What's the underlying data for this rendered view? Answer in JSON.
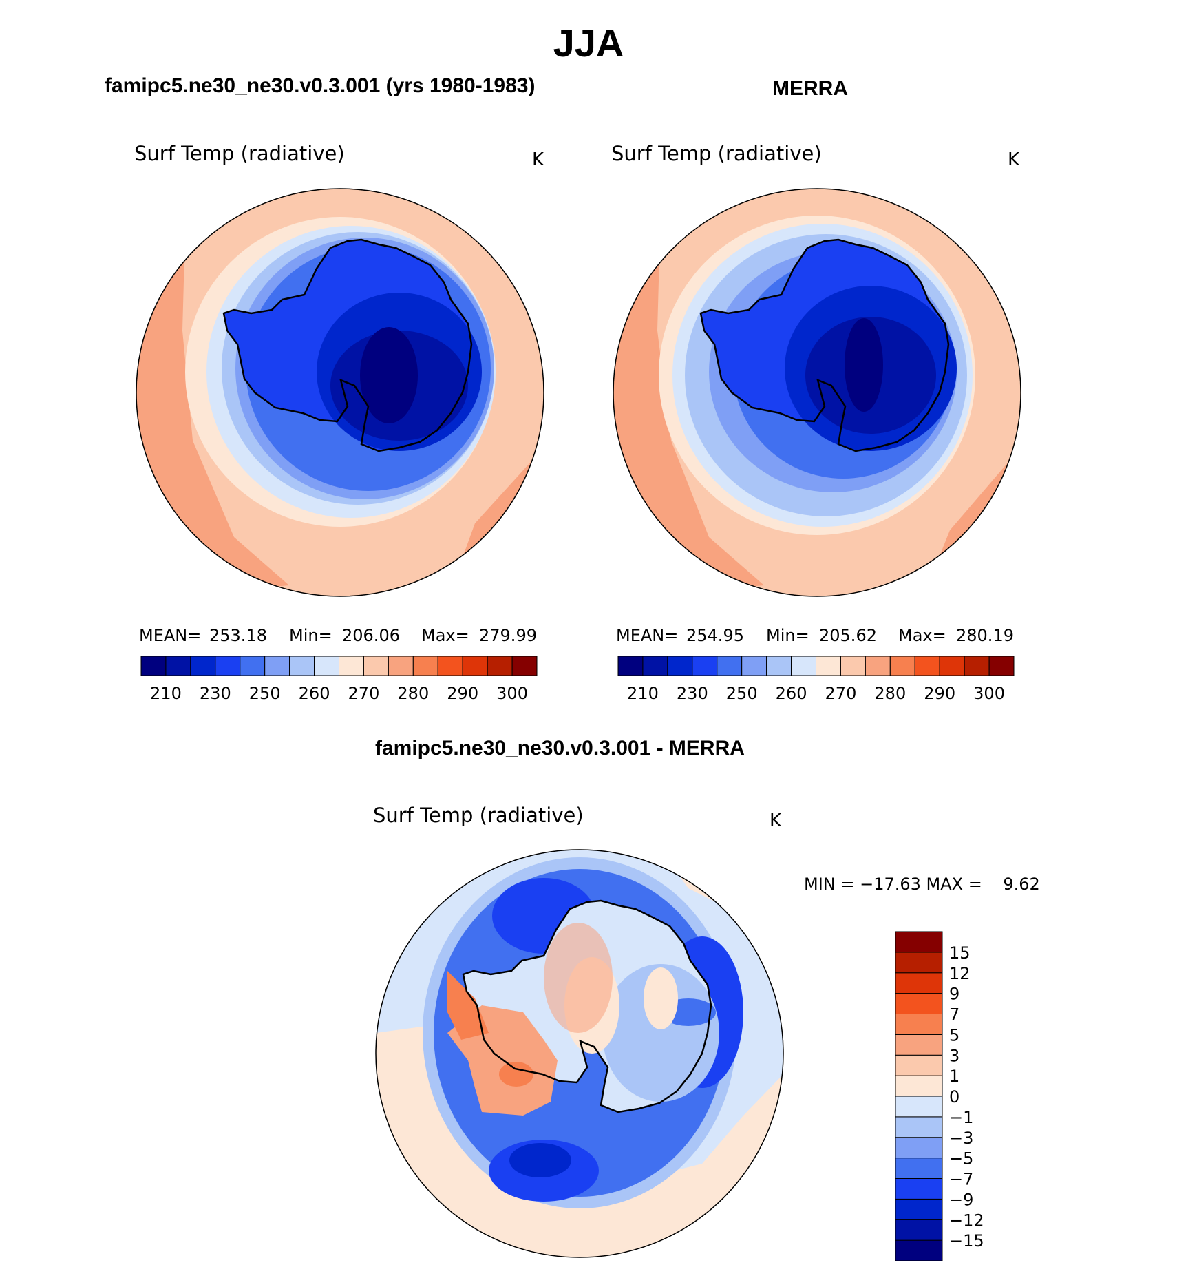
{
  "figure": {
    "title": "JJA"
  },
  "panels": [
    {
      "header": "famipc5.ne30_ne30.v0.3.001 (yrs 1980-1983)",
      "variable": "Surf Temp (radiative)",
      "units": "K",
      "stats": {
        "mean_label": "MEAN=",
        "mean": "253.18",
        "min_label": "Min=",
        "min": "206.06",
        "max_label": "Max=",
        "max": "279.99"
      }
    },
    {
      "header": "MERRA",
      "variable": "Surf Temp (radiative)",
      "units": "K",
      "stats": {
        "mean_label": "MEAN=",
        "mean": "254.95",
        "min_label": "Min=",
        "min": "205.62",
        "max_label": "Max=",
        "max": "280.19"
      }
    },
    {
      "header": "famipc5.ne30_ne30.v0.3.001 - MERRA",
      "variable": "Surf Temp (radiative)",
      "units": "K",
      "stats": {
        "minmax_text": "MIN = −17.63 MAX =    9.62"
      }
    }
  ],
  "colorbars": {
    "abs_colors": [
      "#00007f",
      "#0012a5",
      "#0026cc",
      "#1a40f2",
      "#4170f0",
      "#7f9ff5",
      "#aac5f7",
      "#d7e6fb",
      "#fde7d6",
      "#fbc9ad",
      "#f8a37f",
      "#f7804f",
      "#f3531e",
      "#de3508",
      "#b61f00",
      "#850000"
    ],
    "abs_ticks": [
      "210",
      "230",
      "250",
      "260",
      "270",
      "280",
      "290",
      "300"
    ],
    "diff_colors": [
      "#00007f",
      "#0012a5",
      "#0026cc",
      "#1a40f2",
      "#4170f0",
      "#7f9ff5",
      "#aac5f7",
      "#d7e6fb",
      "#fde7d6",
      "#fbc9ad",
      "#f8a37f",
      "#f7804f",
      "#f3531e",
      "#de3508",
      "#b61f00",
      "#850000"
    ],
    "diff_ticks": [
      "−15",
      "−12",
      "−9",
      "−7",
      "−5",
      "−3",
      "−1",
      "0",
      "1",
      "3",
      "5",
      "7",
      "9",
      "12",
      "15"
    ]
  },
  "chart_data": [
    {
      "type": "heatmap",
      "title": "famipc5.ne30_ne30.v0.3.001 (yrs 1980-1983)",
      "variable": "Surf Temp (radiative)",
      "units": "K",
      "projection": "south polar stereographic",
      "levels": [
        210,
        220,
        230,
        240,
        250,
        255,
        260,
        265,
        270,
        275,
        280,
        285,
        290,
        295,
        300
      ],
      "mean": 253.18,
      "min": 206.06,
      "max": 279.99
    },
    {
      "type": "heatmap",
      "title": "MERRA",
      "variable": "Surf Temp (radiative)",
      "units": "K",
      "projection": "south polar stereographic",
      "levels": [
        210,
        220,
        230,
        240,
        250,
        255,
        260,
        265,
        270,
        275,
        280,
        285,
        290,
        295,
        300
      ],
      "mean": 254.95,
      "min": 205.62,
      "max": 280.19
    },
    {
      "type": "heatmap",
      "title": "famipc5.ne30_ne30.v0.3.001 - MERRA",
      "variable": "Surf Temp (radiative)",
      "units": "K",
      "projection": "south polar stereographic",
      "levels": [
        -15,
        -12,
        -9,
        -7,
        -5,
        -3,
        -1,
        0,
        1,
        3,
        5,
        7,
        9,
        12,
        15
      ],
      "min": -17.63,
      "max": 9.62
    }
  ]
}
